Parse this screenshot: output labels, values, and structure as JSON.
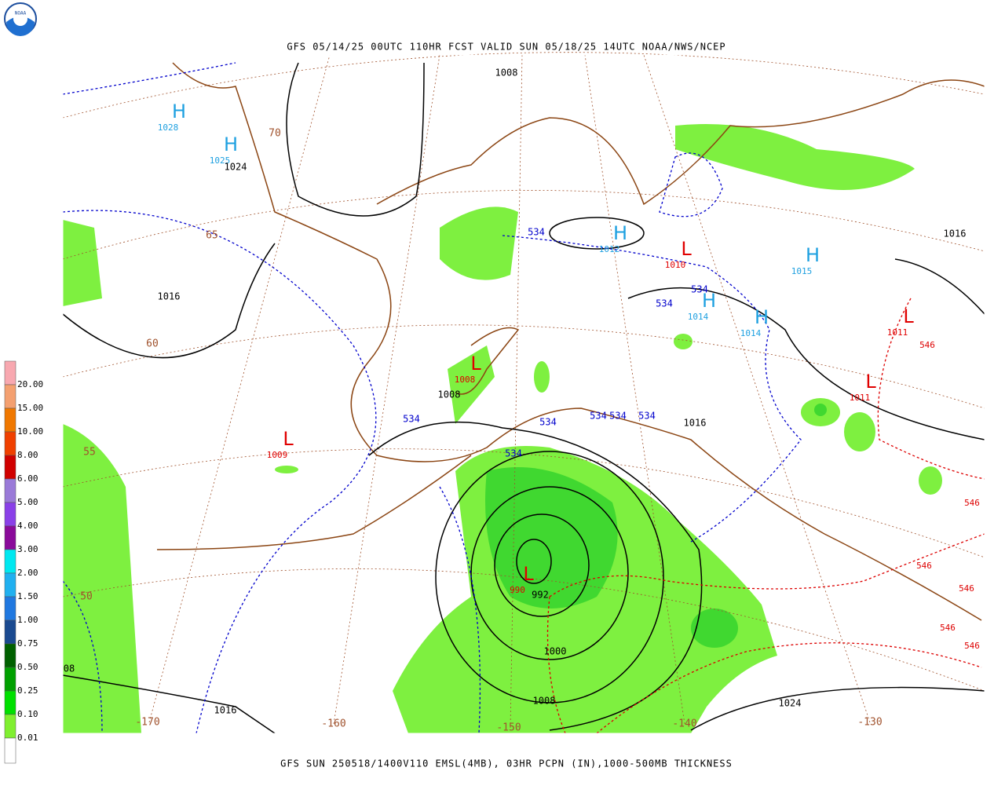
{
  "logo": "NOAA",
  "header": {
    "title": "GFS 05/14/25 00UTC 110HR FCST VALID SUN 05/18/25 14UTC NOAA/NWS/NCEP"
  },
  "footer": {
    "caption": "GFS SUN 250518/1400V110 EMSL(4MB), 03HR PCPN (IN),1000-500MB THICKNESS"
  },
  "legend": {
    "labels": [
      "20.00",
      "15.00",
      "10.00",
      "8.00",
      "6.00",
      "5.00",
      "4.00",
      "3.00",
      "2.00",
      "1.50",
      "1.00",
      "0.75",
      "0.50",
      "0.25",
      "0.10",
      "0.01"
    ]
  },
  "centers": [
    {
      "symbol": "H",
      "value": "1028"
    },
    {
      "symbol": "H",
      "value": "1025"
    },
    {
      "symbol": "H",
      "value": "1012"
    },
    {
      "symbol": "L",
      "value": "1010"
    },
    {
      "symbol": "H",
      "value": "1015"
    },
    {
      "symbol": "H",
      "value": "1014"
    },
    {
      "symbol": "H",
      "value": "1014"
    },
    {
      "symbol": "L",
      "value": "1011"
    },
    {
      "symbol": "L",
      "value": "1011"
    },
    {
      "symbol": "L",
      "value": "1008"
    },
    {
      "symbol": "L",
      "value": "1009"
    },
    {
      "symbol": "L",
      "value": "990"
    }
  ],
  "isobar_labels": [
    "1008",
    "1024",
    "1016",
    "1008",
    "1016",
    "992",
    "1000",
    "1008",
    "1016",
    "1024",
    "1016",
    "08"
  ],
  "thickness_labels_534": [
    "534",
    "534",
    "534",
    "534",
    "534",
    "534",
    "534",
    "534",
    "534"
  ],
  "thickness_labels_546": [
    "546",
    "546",
    "546",
    "546",
    "546",
    "546"
  ],
  "latitude_labels": [
    "70",
    "65",
    "60",
    "55",
    "50"
  ],
  "longitude_labels": [
    "-170",
    "-160",
    "-150",
    "-140",
    "-130"
  ]
}
